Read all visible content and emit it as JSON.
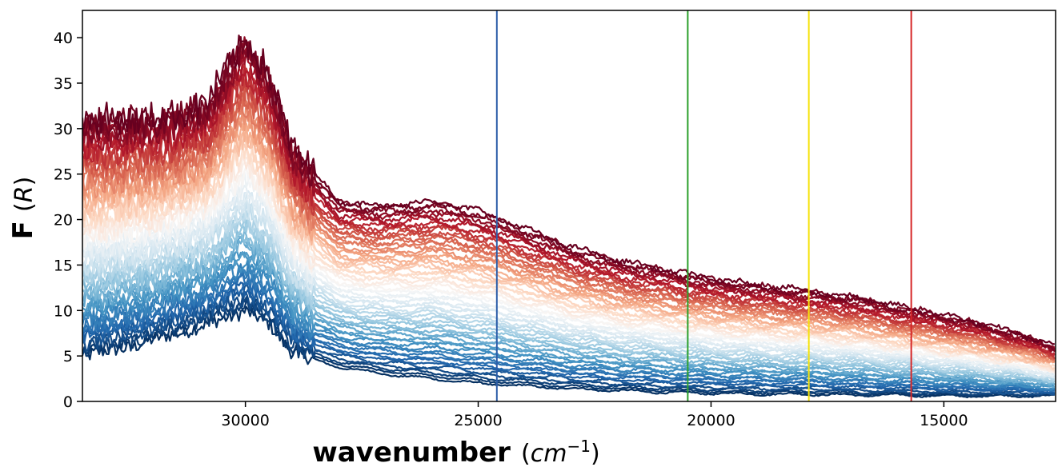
{
  "chart_data": {
    "type": "line",
    "title": "",
    "xlabel": "wavenumber",
    "xlabel_unit": "(cm⁻¹)",
    "ylabel": "F",
    "ylabel_unit": "(R)",
    "xlim": [
      33500,
      12600
    ],
    "ylim": [
      0,
      43
    ],
    "x_reversed": true,
    "x_ticks": [
      30000,
      25000,
      20000,
      15000
    ],
    "x_tick_labels": [
      "30000",
      "25000",
      "20000",
      "15000"
    ],
    "y_ticks": [
      0,
      5,
      10,
      15,
      20,
      25,
      30,
      35,
      40
    ],
    "y_tick_labels": [
      "0",
      "5",
      "10",
      "15",
      "20",
      "25",
      "30",
      "35",
      "40"
    ],
    "colormap": "RdBu_r",
    "colormap_stops": [
      "#053061",
      "#2166ac",
      "#4393c3",
      "#92c5de",
      "#d1e5f0",
      "#f7f7f7",
      "#fddbc7",
      "#f4a582",
      "#d6604d",
      "#b2182b",
      "#67001f"
    ],
    "series_count": 60,
    "envelope": {
      "x": [
        33500,
        32500,
        31500,
        30800,
        30000,
        29500,
        29000,
        28500,
        28000,
        27000,
        26000,
        25000,
        24000,
        23000,
        22000,
        21000,
        20000,
        19000,
        18000,
        17000,
        16000,
        15000,
        14000,
        13000,
        12600
      ],
      "lowest": [
        5.0,
        6.0,
        7.5,
        8.5,
        10.0,
        8.5,
        5.5,
        4.5,
        3.8,
        3.0,
        2.5,
        2.0,
        1.7,
        1.4,
        1.2,
        1.0,
        0.9,
        0.8,
        0.8,
        0.7,
        0.7,
        0.6,
        0.6,
        0.6,
        0.6
      ],
      "highest": [
        31.0,
        31.0,
        31.5,
        33.0,
        40.0,
        36.0,
        28.0,
        25.0,
        22.0,
        21.5,
        22.0,
        21.0,
        19.0,
        17.0,
        15.5,
        14.5,
        13.5,
        12.8,
        12.2,
        11.5,
        10.5,
        9.5,
        8.3,
        6.8,
        6.0
      ]
    },
    "vertical_lines": [
      {
        "x": 24600,
        "color": "#2c5da8"
      },
      {
        "x": 20500,
        "color": "#2ca02c"
      },
      {
        "x": 17900,
        "color": "#f5e20a"
      },
      {
        "x": 15700,
        "color": "#d62728"
      }
    ],
    "grid": false,
    "legend": "none"
  }
}
